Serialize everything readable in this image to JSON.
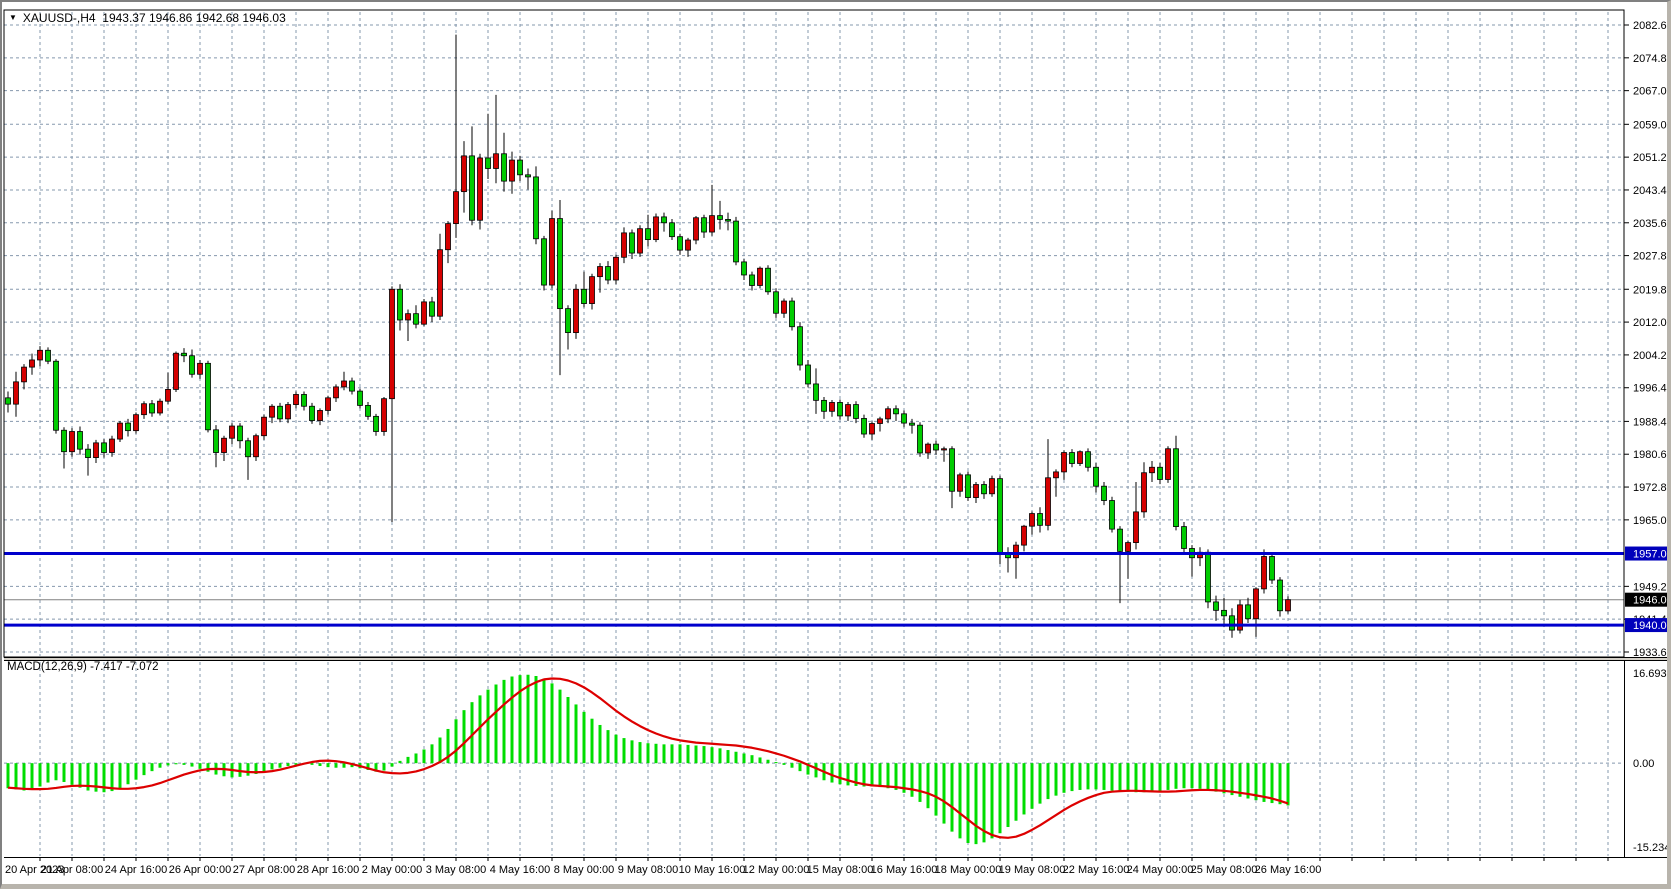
{
  "window": {
    "symbol": "XAUUSD-",
    "timeframe": "H4",
    "ohlc_line": "XAUUSD-,H4  1943.37 1946.86 1942.68 1946.03",
    "open": "1943.37",
    "high": "1946.86",
    "low": "1942.68",
    "close": "1946.03",
    "dropdown_icon": "▼"
  },
  "colors": {
    "background": "#ffffff",
    "frame": "#d4d0c8",
    "border": "#000000",
    "grid": "#8598ad",
    "bull": "#d60000",
    "bear": "#00cc00",
    "macd_hist": "#00dd00",
    "macd_signal": "#dd0000",
    "hline_blue": "#0000cc",
    "hline_tag_bg": "#0000bb",
    "current_price_line": "#808080",
    "current_tag_bg": "#000000",
    "tag_text": "#ffffff"
  },
  "price_axis": {
    "ticks": [
      "2082.60",
      "2074.80",
      "2067.00",
      "2059.00",
      "2051.20",
      "2043.40",
      "2035.60",
      "2027.80",
      "2019.80",
      "2012.00",
      "2004.20",
      "1996.40",
      "1988.40",
      "1980.60",
      "1972.80",
      "1965.00",
      "1949.20",
      "1941.40",
      "1933.60"
    ],
    "gridline_prices": [
      2082.6,
      2074.8,
      2067.0,
      2059.0,
      2051.2,
      2043.4,
      2035.6,
      2027.8,
      2019.8,
      2012.0,
      2004.2,
      1996.4,
      1988.4,
      1980.6,
      1972.8,
      1965.0,
      1957.2,
      1949.2,
      1941.4,
      1933.6
    ],
    "resistance_tag": "1957.00",
    "current_tag": "1946.03",
    "support_tag": "1940.00"
  },
  "macd_axis": {
    "max_label": "16.693",
    "zero_label": "0.00",
    "min_label": "-15.234",
    "max": 16.693,
    "min": -15.234
  },
  "time_axis": {
    "labels": [
      "20 Apr 2023",
      "21 Apr 08:00",
      "24 Apr 16:00",
      "26 Apr 00:00",
      "27 Apr 08:00",
      "28 Apr 16:00",
      "2 May 00:00",
      "3 May 08:00",
      "4 May 16:00",
      "8 May 00:00",
      "9 May 08:00",
      "10 May 16:00",
      "12 May 00:00",
      "15 May 08:00",
      "16 May 16:00",
      "18 May 00:00",
      "19 May 08:00",
      "22 May 16:00",
      "24 May 00:00",
      "25 May 08:00",
      "26 May 16:00"
    ],
    "bars_per_label": 8,
    "bars_per_gridline": 4
  },
  "chart_data": {
    "type": "candlestick+macd",
    "symbol": "XAUUSD",
    "timeframe": "H4",
    "price_range": [
      1933.6,
      2082.6
    ],
    "hlines": [
      1957.0,
      1940.0
    ],
    "current_price": 1946.03,
    "candles": [
      [
        1994.0,
        1995.5,
        1990.5,
        1992.5
      ],
      [
        1992.5,
        2000.2,
        1989.5,
        1997.8
      ],
      [
        1997.8,
        2002.0,
        1996.0,
        2001.3
      ],
      [
        2001.3,
        2004.5,
        1999.5,
        2003.0
      ],
      [
        2003.0,
        2006.3,
        2001.5,
        2005.3
      ],
      [
        2005.3,
        2006.0,
        2002.0,
        2002.7
      ],
      [
        2002.7,
        2003.2,
        1985.5,
        1986.3
      ],
      [
        1986.3,
        1987.0,
        1977.2,
        1981.2
      ],
      [
        1981.2,
        1986.8,
        1980.0,
        1986.0
      ],
      [
        1986.0,
        1987.2,
        1980.5,
        1981.8
      ],
      [
        1981.8,
        1983.0,
        1975.5,
        1979.8
      ],
      [
        1979.8,
        1984.0,
        1978.5,
        1983.3
      ],
      [
        1983.3,
        1984.2,
        1979.8,
        1981.0
      ],
      [
        1981.0,
        1985.0,
        1980.0,
        1984.2
      ],
      [
        1984.2,
        1988.5,
        1983.5,
        1988.0
      ],
      [
        1988.0,
        1989.0,
        1984.8,
        1986.2
      ],
      [
        1986.2,
        1990.5,
        1985.5,
        1990.0
      ],
      [
        1990.0,
        1993.2,
        1989.0,
        1992.6
      ],
      [
        1992.6,
        1993.5,
        1989.5,
        1990.4
      ],
      [
        1990.4,
        1993.8,
        1989.8,
        1993.2
      ],
      [
        1993.2,
        2000.0,
        1992.5,
        1996.0
      ],
      [
        1996.0,
        2005.0,
        1995.4,
        2004.6
      ],
      [
        2004.6,
        2005.8,
        2002.5,
        2004.0
      ],
      [
        2004.0,
        2005.5,
        1998.8,
        1999.6
      ],
      [
        1999.6,
        2003.0,
        1998.5,
        2002.2
      ],
      [
        2002.2,
        2002.8,
        1985.8,
        1986.4
      ],
      [
        1986.4,
        1987.5,
        1977.5,
        1981.0
      ],
      [
        1981.0,
        1985.0,
        1979.0,
        1984.4
      ],
      [
        1984.4,
        1988.0,
        1983.0,
        1987.3
      ],
      [
        1987.3,
        1988.0,
        1982.0,
        1983.8
      ],
      [
        1983.8,
        1984.5,
        1974.5,
        1980.0
      ],
      [
        1980.0,
        1985.5,
        1979.0,
        1985.0
      ],
      [
        1985.0,
        1990.0,
        1984.0,
        1989.4
      ],
      [
        1989.4,
        1992.5,
        1988.0,
        1992.0
      ],
      [
        1992.0,
        1992.8,
        1988.2,
        1989.0
      ],
      [
        1989.0,
        1993.0,
        1988.0,
        1992.4
      ],
      [
        1992.4,
        1995.5,
        1991.5,
        1994.8
      ],
      [
        1994.8,
        1995.5,
        1991.0,
        1992.0
      ],
      [
        1992.0,
        1992.8,
        1987.8,
        1988.6
      ],
      [
        1988.6,
        1991.5,
        1987.5,
        1991.0
      ],
      [
        1991.0,
        1994.5,
        1990.0,
        1994.0
      ],
      [
        1994.0,
        1997.2,
        1993.0,
        1996.6
      ],
      [
        1996.6,
        2000.2,
        1995.8,
        1998.0
      ],
      [
        1998.0,
        1998.8,
        1994.8,
        1995.6
      ],
      [
        1995.6,
        1996.2,
        1991.5,
        1992.2
      ],
      [
        1992.2,
        1993.0,
        1988.8,
        1989.6
      ],
      [
        1989.6,
        1990.2,
        1985.0,
        1986.0
      ],
      [
        1986.0,
        1994.2,
        1985.0,
        1993.8
      ],
      [
        1993.8,
        2020.5,
        1964.5,
        2019.8
      ],
      [
        2019.8,
        2021.0,
        2010.0,
        2012.5
      ],
      [
        2012.5,
        2015.0,
        2007.5,
        2014.0
      ],
      [
        2014.0,
        2016.0,
        2010.5,
        2011.5
      ],
      [
        2011.5,
        2017.5,
        2011.0,
        2016.8
      ],
      [
        2016.8,
        2018.0,
        2012.0,
        2013.4
      ],
      [
        2013.4,
        2033.0,
        2012.5,
        2029.2
      ],
      [
        2029.2,
        2036.0,
        2026.0,
        2035.4
      ],
      [
        2035.4,
        2080.3,
        2032.0,
        2043.0
      ],
      [
        2043.0,
        2055.0,
        2038.0,
        2051.5
      ],
      [
        2051.5,
        2058.5,
        2035.0,
        2036.2
      ],
      [
        2036.2,
        2052.0,
        2034.0,
        2051.0
      ],
      [
        2051.0,
        2061.5,
        2046.0,
        2048.5
      ],
      [
        2048.5,
        2066.0,
        2045.0,
        2052.0
      ],
      [
        2052.0,
        2057.0,
        2043.0,
        2045.5
      ],
      [
        2045.5,
        2052.5,
        2042.5,
        2050.5
      ],
      [
        2050.5,
        2051.5,
        2045.5,
        2047.0
      ],
      [
        2047.0,
        2048.5,
        2043.5,
        2046.5
      ],
      [
        2046.5,
        2049.0,
        2030.5,
        2031.8
      ],
      [
        2031.8,
        2032.5,
        2019.5,
        2020.8
      ],
      [
        2020.8,
        2038.5,
        2020.0,
        2036.6
      ],
      [
        2036.6,
        2041.0,
        1999.4,
        2015.2
      ],
      [
        2015.2,
        2016.0,
        2005.5,
        2009.5
      ],
      [
        2009.5,
        2021.0,
        2008.0,
        2019.8
      ],
      [
        2019.8,
        2024.0,
        2015.5,
        2016.4
      ],
      [
        2016.4,
        2023.5,
        2015.0,
        2022.8
      ],
      [
        2022.8,
        2026.0,
        2019.0,
        2025.2
      ],
      [
        2025.2,
        2026.5,
        2021.0,
        2022.0
      ],
      [
        2022.0,
        2028.0,
        2021.0,
        2027.4
      ],
      [
        2027.4,
        2034.5,
        2026.0,
        2033.2
      ],
      [
        2033.2,
        2034.0,
        2027.0,
        2028.4
      ],
      [
        2028.4,
        2035.0,
        2027.5,
        2034.2
      ],
      [
        2034.2,
        2037.5,
        2030.0,
        2031.6
      ],
      [
        2031.6,
        2037.8,
        2031.0,
        2037.0
      ],
      [
        2037.0,
        2038.0,
        2033.5,
        2035.6
      ],
      [
        2035.6,
        2036.5,
        2031.5,
        2032.3
      ],
      [
        2032.3,
        2033.0,
        2028.0,
        2029.1
      ],
      [
        2029.1,
        2032.0,
        2027.5,
        2031.5
      ],
      [
        2031.5,
        2037.2,
        2030.5,
        2036.8
      ],
      [
        2036.8,
        2037.5,
        2032.0,
        2033.4
      ],
      [
        2033.4,
        2044.6,
        2032.5,
        2037.3
      ],
      [
        2037.3,
        2040.8,
        2034.0,
        2036.4
      ],
      [
        2036.4,
        2038.0,
        2033.8,
        2036.0
      ],
      [
        2036.0,
        2037.0,
        2025.5,
        2026.3
      ],
      [
        2026.3,
        2027.0,
        2022.0,
        2023.2
      ],
      [
        2023.2,
        2024.0,
        2019.5,
        2020.7
      ],
      [
        2020.7,
        2025.2,
        2020.0,
        2024.8
      ],
      [
        2024.8,
        2025.5,
        2018.5,
        2019.2
      ],
      [
        2019.2,
        2020.0,
        2013.0,
        2014.1
      ],
      [
        2014.1,
        2017.6,
        2013.0,
        2017.0
      ],
      [
        2017.0,
        2017.8,
        2010.0,
        2010.9
      ],
      [
        2010.9,
        2012.0,
        2000.5,
        2001.8
      ],
      [
        2001.8,
        2003.0,
        1996.5,
        1997.3
      ],
      [
        1997.3,
        2001.0,
        1990.2,
        1993.4
      ],
      [
        1993.4,
        1994.2,
        1989.0,
        1990.8
      ],
      [
        1990.8,
        1993.5,
        1989.5,
        1992.9
      ],
      [
        1992.9,
        1993.6,
        1988.8,
        1989.7
      ],
      [
        1989.7,
        1993.0,
        1988.5,
        1992.4
      ],
      [
        1992.4,
        1993.2,
        1988.0,
        1989.1
      ],
      [
        1989.1,
        1990.0,
        1984.5,
        1985.4
      ],
      [
        1985.4,
        1988.4,
        1984.0,
        1987.9
      ],
      [
        1987.9,
        1989.5,
        1986.0,
        1989.0
      ],
      [
        1989.0,
        1992.0,
        1988.0,
        1991.4
      ],
      [
        1991.4,
        1992.2,
        1988.5,
        1990.2
      ],
      [
        1990.2,
        1991.0,
        1987.0,
        1988.0
      ],
      [
        1988.0,
        1989.0,
        1985.5,
        1987.5
      ],
      [
        1987.5,
        1988.2,
        1980.0,
        1980.9
      ],
      [
        1980.9,
        1983.4,
        1979.5,
        1983.0
      ],
      [
        1983.0,
        1983.8,
        1980.5,
        1981.6
      ],
      [
        1981.6,
        1982.4,
        1978.8,
        1981.9
      ],
      [
        1981.9,
        1982.5,
        1967.8,
        1971.8
      ],
      [
        1971.8,
        1976.2,
        1970.5,
        1975.7
      ],
      [
        1975.7,
        1976.5,
        1969.5,
        1970.3
      ],
      [
        1970.3,
        1974.0,
        1969.0,
        1973.4
      ],
      [
        1973.4,
        1974.2,
        1970.0,
        1971.2
      ],
      [
        1971.2,
        1975.5,
        1970.5,
        1974.8
      ],
      [
        1974.8,
        1975.5,
        1954.5,
        1957.0
      ],
      [
        1957.0,
        1958.5,
        1952.5,
        1956.0
      ],
      [
        1956.0,
        1959.8,
        1951.0,
        1959.0
      ],
      [
        1959.0,
        1963.8,
        1957.5,
        1963.5
      ],
      [
        1963.5,
        1967.0,
        1961.5,
        1966.5
      ],
      [
        1966.5,
        1968.0,
        1962.0,
        1963.7
      ],
      [
        1963.7,
        1984.2,
        1962.5,
        1975.0
      ],
      [
        1975.0,
        1977.0,
        1970.5,
        1976.4
      ],
      [
        1976.4,
        1981.5,
        1974.5,
        1981.0
      ],
      [
        1981.0,
        1981.8,
        1977.5,
        1978.4
      ],
      [
        1978.4,
        1981.5,
        1977.8,
        1981.2
      ],
      [
        1981.2,
        1982.0,
        1976.5,
        1977.5
      ],
      [
        1977.5,
        1978.5,
        1971.5,
        1973.0
      ],
      [
        1973.0,
        1974.0,
        1968.5,
        1969.6
      ],
      [
        1969.6,
        1970.5,
        1962.0,
        1962.8
      ],
      [
        1962.8,
        1963.5,
        1945.2,
        1957.5
      ],
      [
        1957.5,
        1960.0,
        1951.0,
        1959.6
      ],
      [
        1959.6,
        1974.0,
        1958.0,
        1966.9
      ],
      [
        1966.9,
        1978.7,
        1965.5,
        1976.2
      ],
      [
        1976.2,
        1979.0,
        1974.0,
        1977.5
      ],
      [
        1977.5,
        1978.5,
        1973.5,
        1974.6
      ],
      [
        1974.6,
        1982.5,
        1973.8,
        1981.9
      ],
      [
        1981.9,
        1985.0,
        1962.5,
        1963.4
      ],
      [
        1963.4,
        1964.5,
        1957.0,
        1958.2
      ],
      [
        1958.2,
        1959.0,
        1951.5,
        1956.0
      ],
      [
        1956.0,
        1958.5,
        1954.0,
        1957.3
      ],
      [
        1957.3,
        1958.0,
        1944.0,
        1945.5
      ],
      [
        1945.5,
        1947.0,
        1941.0,
        1943.5
      ],
      [
        1943.5,
        1946.5,
        1939.5,
        1942.2
      ],
      [
        1942.2,
        1944.0,
        1937.0,
        1938.8
      ],
      [
        1938.8,
        1946.0,
        1938.0,
        1944.8
      ],
      [
        1944.8,
        1946.5,
        1940.5,
        1941.5
      ],
      [
        1941.5,
        1949.0,
        1937.2,
        1948.6
      ],
      [
        1948.6,
        1958.0,
        1947.5,
        1956.3
      ],
      [
        1956.3,
        1957.0,
        1949.8,
        1950.7
      ],
      [
        1950.7,
        1951.4,
        1942.0,
        1943.4
      ],
      [
        1943.37,
        1946.86,
        1942.68,
        1946.03
      ]
    ],
    "macd": {
      "label": "MACD(12,26,9) -7.417 -7.072",
      "params": "12,26,9",
      "macd_value": -7.417,
      "signal_value": -7.072,
      "histogram": [
        -4.4,
        -4.6,
        -4.8,
        -4.6,
        -4.1,
        -3.4,
        -3.0,
        -3.3,
        -3.8,
        -4.3,
        -4.8,
        -5.0,
        -5.1,
        -4.9,
        -4.4,
        -3.7,
        -2.9,
        -2.1,
        -1.4,
        -0.8,
        -0.4,
        -0.2,
        -0.3,
        -0.6,
        -1.0,
        -1.5,
        -2.0,
        -2.3,
        -2.5,
        -2.4,
        -2.2,
        -1.9,
        -1.5,
        -1.1,
        -0.8,
        -0.5,
        -0.3,
        -0.2,
        -0.3,
        -0.5,
        -0.7,
        -0.8,
        -0.8,
        -0.7,
        -0.9,
        -1.2,
        -1.5,
        -1.3,
        -0.6,
        0.4,
        1.1,
        1.7,
        2.4,
        3.3,
        4.5,
        6.0,
        7.7,
        9.3,
        10.7,
        11.9,
        12.9,
        13.8,
        14.6,
        15.2,
        15.45,
        15.5,
        15.3,
        14.8,
        14.0,
        12.9,
        11.6,
        10.3,
        9.0,
        7.8,
        6.7,
        5.8,
        5.0,
        4.4,
        4.0,
        3.7,
        3.5,
        3.4,
        3.3,
        3.3,
        3.3,
        3.2,
        3.1,
        3.0,
        2.8,
        2.6,
        2.3,
        2.0,
        1.7,
        1.4,
        1.0,
        0.6,
        0.2,
        -0.3,
        -0.8,
        -1.4,
        -2.0,
        -2.5,
        -3.0,
        -3.4,
        -3.7,
        -3.9,
        -4.0,
        -4.1,
        -4.1,
        -4.2,
        -4.4,
        -4.7,
        -5.2,
        -5.9,
        -6.8,
        -7.9,
        -9.2,
        -10.6,
        -12.0,
        -13.2,
        -14.0,
        -14.2,
        -13.9,
        -13.2,
        -12.3,
        -11.2,
        -10.1,
        -9.0,
        -8.0,
        -7.1,
        -6.3,
        -5.7,
        -5.2,
        -4.9,
        -4.7,
        -4.6,
        -4.6,
        -4.7,
        -4.8,
        -4.9,
        -5.0,
        -5.1,
        -5.1,
        -5.0,
        -4.9,
        -4.7,
        -4.5,
        -4.4,
        -4.4,
        -4.5,
        -4.7,
        -5.0,
        -5.3,
        -5.6,
        -5.9,
        -6.2,
        -6.5,
        -6.8,
        -7.0,
        -7.2,
        -7.417
      ],
      "signal": [
        -4.3,
        -4.4,
        -4.5,
        -4.55,
        -4.55,
        -4.5,
        -4.35,
        -4.15,
        -4.0,
        -3.95,
        -4.0,
        -4.1,
        -4.25,
        -4.4,
        -4.5,
        -4.5,
        -4.4,
        -4.2,
        -3.9,
        -3.5,
        -3.0,
        -2.5,
        -2.0,
        -1.6,
        -1.25,
        -1.05,
        -1.0,
        -1.05,
        -1.2,
        -1.4,
        -1.55,
        -1.6,
        -1.55,
        -1.4,
        -1.15,
        -0.8,
        -0.45,
        -0.1,
        0.2,
        0.4,
        0.45,
        0.35,
        0.15,
        -0.15,
        -0.5,
        -0.9,
        -1.3,
        -1.6,
        -1.75,
        -1.8,
        -1.7,
        -1.45,
        -1.05,
        -0.5,
        0.2,
        1.1,
        2.2,
        3.5,
        4.9,
        6.3,
        7.7,
        9.0,
        10.3,
        11.5,
        12.6,
        13.5,
        14.2,
        14.7,
        14.85,
        14.8,
        14.5,
        14.0,
        13.3,
        12.4,
        11.4,
        10.3,
        9.2,
        8.2,
        7.3,
        6.5,
        5.8,
        5.2,
        4.7,
        4.3,
        4.0,
        3.8,
        3.6,
        3.5,
        3.4,
        3.3,
        3.2,
        3.1,
        2.9,
        2.7,
        2.4,
        2.1,
        1.7,
        1.3,
        0.8,
        0.3,
        -0.3,
        -0.9,
        -1.5,
        -2.1,
        -2.6,
        -3.0,
        -3.4,
        -3.7,
        -3.9,
        -4.0,
        -4.1,
        -4.2,
        -4.4,
        -4.6,
        -4.9,
        -5.3,
        -5.9,
        -6.7,
        -7.7,
        -8.8,
        -9.9,
        -11.0,
        -11.9,
        -12.6,
        -13.0,
        -13.1,
        -12.9,
        -12.4,
        -11.7,
        -10.9,
        -10.0,
        -9.1,
        -8.2,
        -7.4,
        -6.7,
        -6.1,
        -5.6,
        -5.2,
        -5.0,
        -4.9,
        -4.85,
        -4.85,
        -4.9,
        -4.95,
        -5.0,
        -5.0,
        -4.95,
        -4.85,
        -4.75,
        -4.7,
        -4.7,
        -4.75,
        -4.85,
        -5.0,
        -5.2,
        -5.4,
        -5.65,
        -5.9,
        -6.2,
        -6.6,
        -7.072
      ]
    }
  }
}
